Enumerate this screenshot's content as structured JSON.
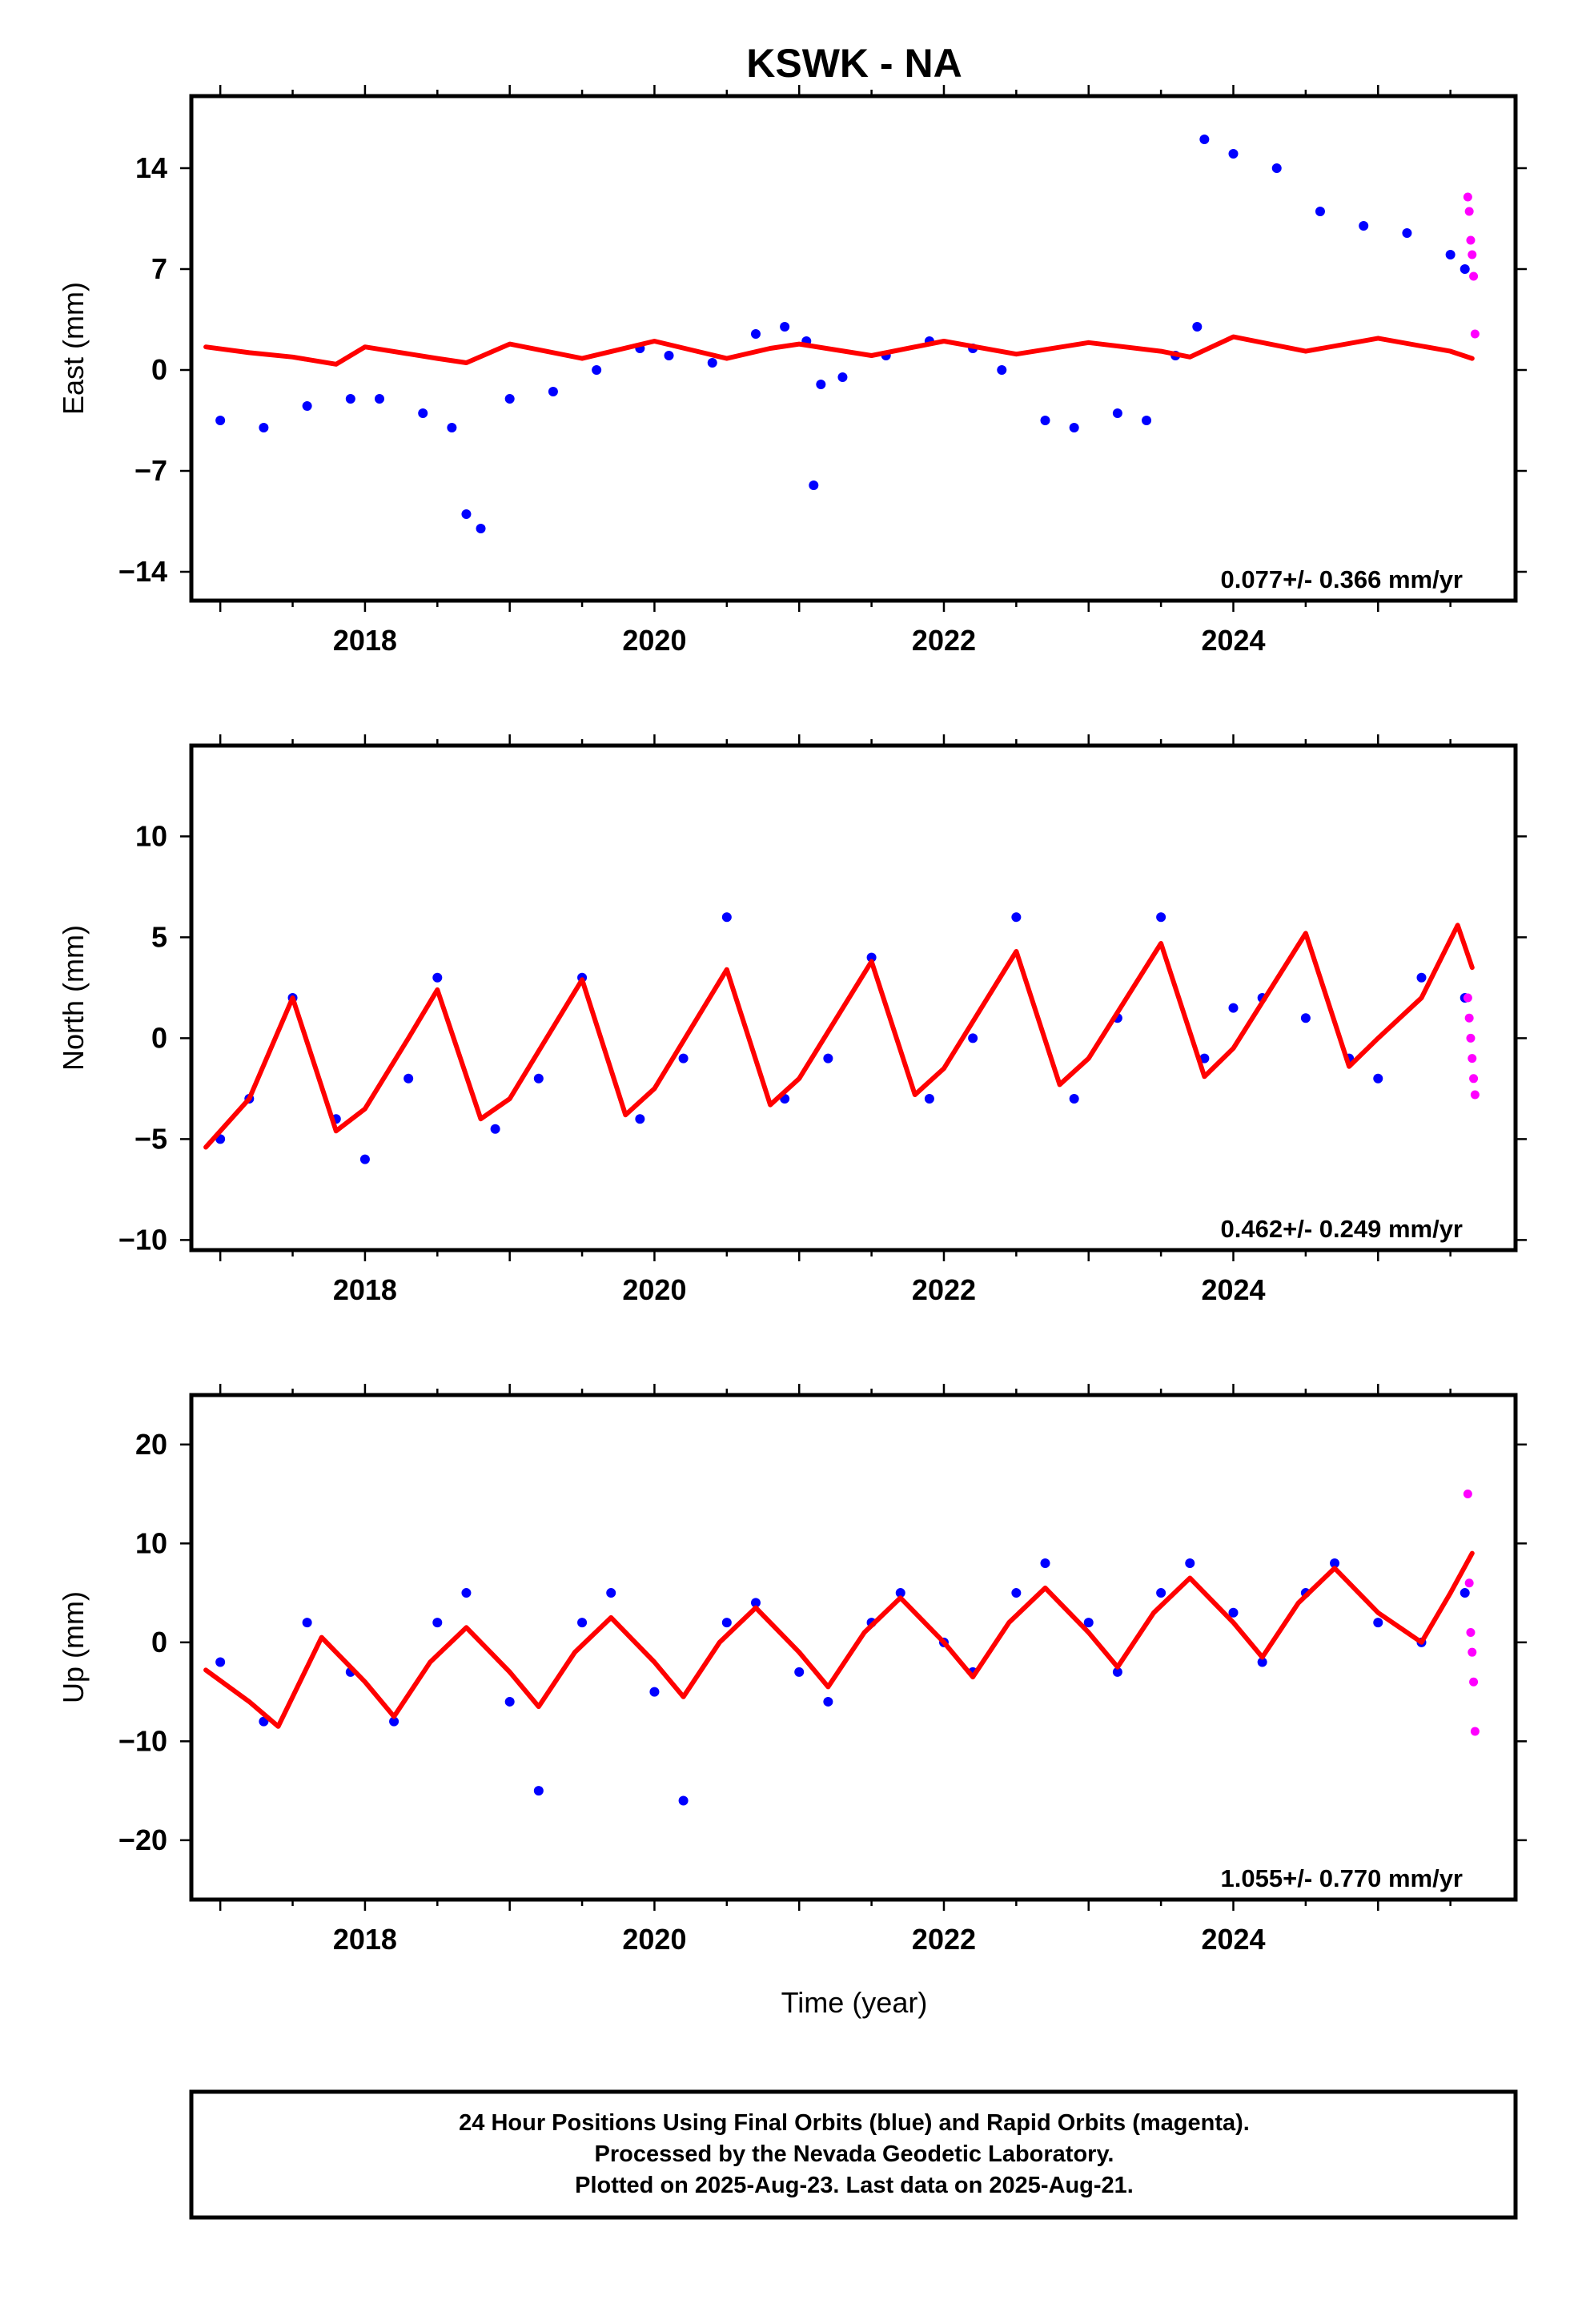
{
  "title": "KSWK - NA",
  "xlabel": "Time (year)",
  "footer": {
    "line1": "24 Hour Positions Using Final Orbits (blue) and Rapid Orbits (magenta).",
    "line2": "Processed by the Nevada Geodetic Laboratory.",
    "line3": "Plotted on 2025-Aug-23. Last data on 2025-Aug-21."
  },
  "colors": {
    "final": "#0000ff",
    "rapid": "#ff00ff",
    "model": "#ff0000"
  },
  "chart_data": [
    {
      "type": "scatter",
      "ylabel": "East (mm)",
      "rate": "0.077+/- 0.366 mm/yr",
      "xlim": [
        2016.8,
        2025.95
      ],
      "ylim": [
        -16,
        19
      ],
      "xticks": [
        2018,
        2020,
        2022,
        2024
      ],
      "yticks": [
        14,
        7,
        0,
        -7,
        -14
      ],
      "final_series": {
        "name": "Final Orbits",
        "x": [
          2017.0,
          2017.3,
          2017.6,
          2017.9,
          2018.1,
          2018.4,
          2018.6,
          2018.7,
          2018.8,
          2019.0,
          2019.3,
          2019.6,
          2019.9,
          2020.1,
          2020.4,
          2020.7,
          2020.9,
          2021.05,
          2021.1,
          2021.15,
          2021.3,
          2021.6,
          2021.9,
          2022.2,
          2022.4,
          2022.7,
          2022.9,
          2023.2,
          2023.4,
          2023.6,
          2023.75,
          2023.8,
          2024.0,
          2024.3,
          2024.6,
          2024.9,
          2025.2,
          2025.5,
          2025.6
        ],
        "y": [
          -3.5,
          -4.0,
          -2.5,
          -2.0,
          -2.0,
          -3.0,
          -4.0,
          -10.0,
          -11.0,
          -2.0,
          -1.5,
          0.0,
          1.5,
          1.0,
          0.5,
          2.5,
          3.0,
          2.0,
          -8.0,
          -1.0,
          -0.5,
          1.0,
          2.0,
          1.5,
          0.0,
          -3.5,
          -4.0,
          -3.0,
          -3.5,
          1.0,
          3.0,
          16.0,
          15.0,
          14.0,
          11.0,
          10.0,
          9.5,
          8.0,
          7.0
        ]
      },
      "rapid_series": {
        "name": "Rapid Orbits",
        "x": [
          2025.62,
          2025.63,
          2025.64,
          2025.65,
          2025.66,
          2025.67
        ],
        "y": [
          12.0,
          11.0,
          9.0,
          8.0,
          6.5,
          2.5
        ]
      },
      "model_series": {
        "name": "Model",
        "x": [
          2016.9,
          2017.2,
          2017.5,
          2017.8,
          2018.0,
          2018.5,
          2018.7,
          2019.0,
          2019.5,
          2020.0,
          2020.5,
          2020.8,
          2021.0,
          2021.5,
          2022.0,
          2022.5,
          2023.0,
          2023.5,
          2023.7,
          2024.0,
          2024.5,
          2025.0,
          2025.5,
          2025.65
        ],
        "y": [
          1.6,
          1.2,
          0.9,
          0.4,
          1.6,
          0.8,
          0.5,
          1.8,
          0.8,
          2.0,
          0.8,
          1.5,
          1.8,
          1.0,
          2.0,
          1.1,
          1.9,
          1.3,
          0.9,
          2.3,
          1.3,
          2.2,
          1.3,
          0.8
        ]
      }
    },
    {
      "type": "scatter",
      "ylabel": "North (mm)",
      "rate": "0.462+/- 0.249 mm/yr",
      "xlim": [
        2016.8,
        2025.95
      ],
      "ylim": [
        -10.5,
        14.5
      ],
      "xticks": [
        2018,
        2020,
        2022,
        2024
      ],
      "yticks": [
        10,
        5,
        0,
        -5,
        -10
      ],
      "final_series": {
        "name": "Final Orbits",
        "x": [
          2017.0,
          2017.2,
          2017.5,
          2017.8,
          2018.0,
          2018.3,
          2018.5,
          2018.9,
          2019.2,
          2019.5,
          2019.9,
          2020.2,
          2020.5,
          2020.9,
          2021.2,
          2021.5,
          2021.9,
          2022.2,
          2022.5,
          2022.9,
          2023.2,
          2023.5,
          2023.8,
          2024.0,
          2024.2,
          2024.5,
          2024.8,
          2025.0,
          2025.3,
          2025.6
        ],
        "y": [
          -5.0,
          -3.0,
          2.0,
          -4.0,
          -6.0,
          -2.0,
          3.0,
          -4.5,
          -2.0,
          3.0,
          -4.0,
          -1.0,
          6.0,
          -3.0,
          -1.0,
          4.0,
          -3.0,
          0.0,
          6.0,
          -3.0,
          1.0,
          6.0,
          -1.0,
          1.5,
          2.0,
          1.0,
          -1.0,
          -2.0,
          3.0,
          2.0
        ]
      },
      "rapid_series": {
        "name": "Rapid Orbits",
        "x": [
          2025.62,
          2025.63,
          2025.64,
          2025.65,
          2025.66,
          2025.67
        ],
        "y": [
          2.0,
          1.0,
          0.0,
          -1.0,
          -2.0,
          -2.8
        ]
      },
      "model_series": {
        "name": "Model",
        "x": [
          2016.9,
          2017.2,
          2017.5,
          2017.8,
          2018.0,
          2018.3,
          2018.5,
          2018.8,
          2019.0,
          2019.5,
          2019.8,
          2020.0,
          2020.5,
          2020.8,
          2021.0,
          2021.5,
          2021.8,
          2022.0,
          2022.5,
          2022.8,
          2023.0,
          2023.5,
          2023.8,
          2024.0,
          2024.5,
          2024.8,
          2025.0,
          2025.3,
          2025.55,
          2025.65
        ],
        "y": [
          -5.4,
          -3.0,
          2.0,
          -4.6,
          -3.5,
          0.0,
          2.4,
          -4.0,
          -3.0,
          2.9,
          -3.8,
          -2.5,
          3.4,
          -3.3,
          -2.0,
          3.8,
          -2.8,
          -1.5,
          4.3,
          -2.3,
          -1.0,
          4.7,
          -1.9,
          -0.5,
          5.2,
          -1.4,
          0.0,
          2.0,
          5.6,
          3.5
        ]
      }
    },
    {
      "type": "scatter",
      "ylabel": "Up (mm)",
      "rate": "1.055+/- 0.770 mm/yr",
      "xlim": [
        2016.8,
        2025.95
      ],
      "ylim": [
        -26,
        25
      ],
      "xticks": [
        2018,
        2020,
        2022,
        2024
      ],
      "yticks": [
        20,
        10,
        0,
        -10,
        -20
      ],
      "final_series": {
        "name": "Final Orbits",
        "x": [
          2017.0,
          2017.3,
          2017.6,
          2017.9,
          2018.2,
          2018.5,
          2018.7,
          2019.0,
          2019.2,
          2019.5,
          2019.7,
          2020.0,
          2020.2,
          2020.5,
          2020.7,
          2021.0,
          2021.2,
          2021.5,
          2021.7,
          2022.0,
          2022.2,
          2022.5,
          2022.7,
          2023.0,
          2023.2,
          2023.5,
          2023.7,
          2024.0,
          2024.2,
          2024.5,
          2024.7,
          2025.0,
          2025.3,
          2025.6
        ],
        "y": [
          -2.0,
          -8.0,
          2.0,
          -3.0,
          -8.0,
          2.0,
          5.0,
          -6.0,
          -15.0,
          2.0,
          5.0,
          -5.0,
          -16.0,
          2.0,
          4.0,
          -3.0,
          -6.0,
          2.0,
          5.0,
          0.0,
          -3.0,
          5.0,
          8.0,
          2.0,
          -3.0,
          5.0,
          8.0,
          3.0,
          -2.0,
          5.0,
          8.0,
          2.0,
          0.0,
          5.0
        ]
      },
      "rapid_series": {
        "name": "Rapid Orbits",
        "x": [
          2025.62,
          2025.63,
          2025.64,
          2025.65,
          2025.66,
          2025.67
        ],
        "y": [
          15.0,
          6.0,
          1.0,
          -1.0,
          -4.0,
          -9.0
        ]
      },
      "model_series": {
        "name": "Model",
        "x": [
          2016.9,
          2017.2,
          2017.4,
          2017.7,
          2018.0,
          2018.2,
          2018.45,
          2018.7,
          2019.0,
          2019.2,
          2019.45,
          2019.7,
          2020.0,
          2020.2,
          2020.45,
          2020.7,
          2021.0,
          2021.2,
          2021.45,
          2021.7,
          2022.0,
          2022.2,
          2022.45,
          2022.7,
          2023.0,
          2023.2,
          2023.45,
          2023.7,
          2024.0,
          2024.2,
          2024.45,
          2024.7,
          2025.0,
          2025.3,
          2025.5,
          2025.65
        ],
        "y": [
          -2.8,
          -6.0,
          -8.5,
          0.5,
          -4.0,
          -7.5,
          -2.0,
          1.5,
          -3.0,
          -6.5,
          -1.0,
          2.5,
          -2.0,
          -5.5,
          0.0,
          3.5,
          -1.0,
          -4.5,
          1.0,
          4.5,
          0.0,
          -3.5,
          2.0,
          5.5,
          1.0,
          -2.5,
          3.0,
          6.5,
          2.0,
          -1.5,
          4.0,
          7.5,
          3.0,
          0.0,
          5.0,
          9.0
        ]
      }
    }
  ]
}
